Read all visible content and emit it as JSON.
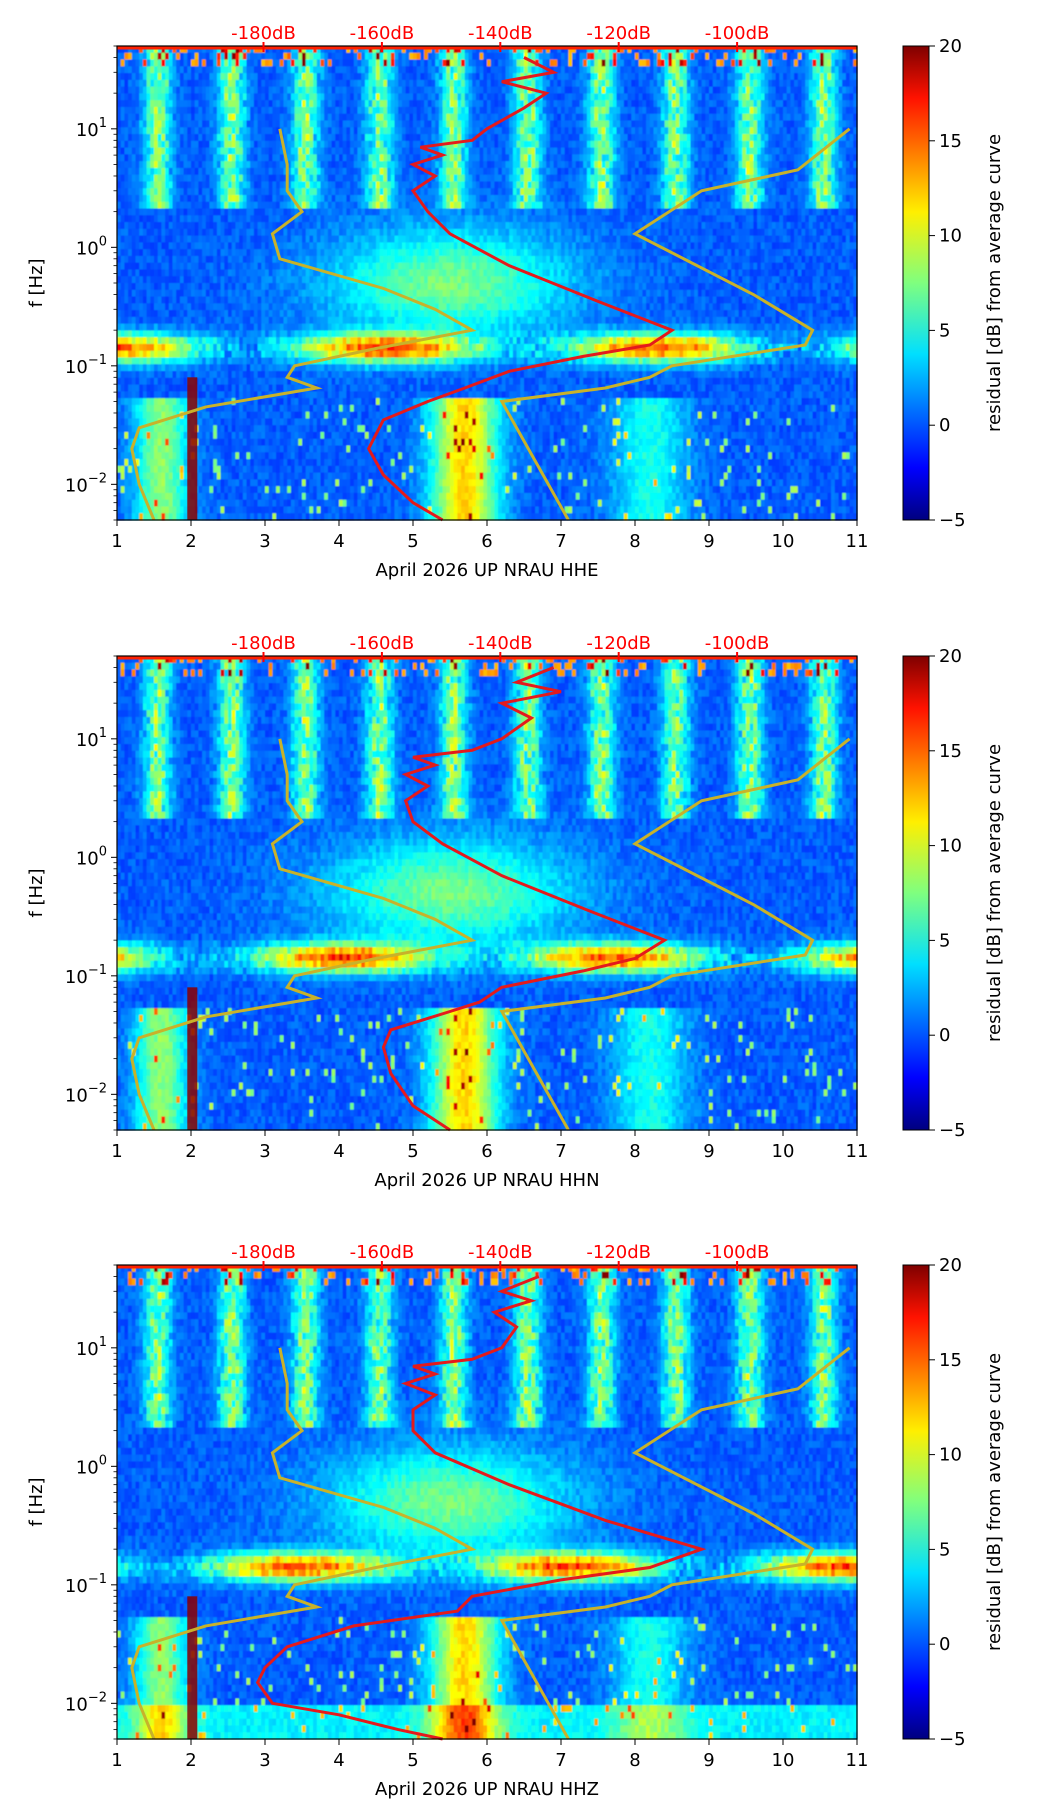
{
  "colorbar": {
    "label": "residual [dB] from average curve",
    "min": -5,
    "max": 20,
    "ticks": [
      "20",
      "15",
      "10",
      "5",
      "0",
      "−5"
    ],
    "tick_values": [
      20,
      15,
      10,
      5,
      0,
      -5
    ]
  },
  "colors": {
    "db_label": "#ff0000",
    "average_curve": "#e41a1c",
    "noise_model": "#c8b22a"
  },
  "chart_data": [
    {
      "type": "heatmap",
      "xlabel": "April 2026 UP NRAU  HHE",
      "ylabel": "f [Hz]",
      "xlim": [
        1,
        11
      ],
      "ylim_hz": [
        0.005,
        50
      ],
      "y_scale": "log",
      "x_ticks": [
        "1",
        "2",
        "3",
        "4",
        "5",
        "6",
        "7",
        "8",
        "9",
        "10",
        "11"
      ],
      "y_ticks": [
        "10",
        "10",
        "10",
        "10"
      ],
      "y_tick_exponents": [
        "−2",
        "−1",
        "0",
        "1"
      ],
      "top_ticks": [
        "-180dB",
        "-160dB",
        "-140dB",
        "-120dB",
        "-100dB"
      ],
      "top_tick_db": [
        -180,
        -160,
        -140,
        -120,
        -100
      ],
      "average_curve": [
        [
          5.4,
          0.005
        ],
        [
          5.0,
          0.007
        ],
        [
          4.6,
          0.012
        ],
        [
          4.4,
          0.02
        ],
        [
          4.6,
          0.035
        ],
        [
          5.2,
          0.05
        ],
        [
          5.7,
          0.065
        ],
        [
          6.3,
          0.09
        ],
        [
          7.3,
          0.12
        ],
        [
          8.2,
          0.15
        ],
        [
          8.5,
          0.2
        ],
        [
          7.5,
          0.35
        ],
        [
          6.3,
          0.7
        ],
        [
          5.5,
          1.3
        ],
        [
          5.2,
          2
        ],
        [
          5.0,
          3
        ],
        [
          5.3,
          4
        ],
        [
          5.0,
          5
        ],
        [
          5.4,
          6
        ],
        [
          5.1,
          7
        ],
        [
          5.8,
          8
        ],
        [
          6.0,
          10
        ],
        [
          6.5,
          15
        ],
        [
          6.8,
          20
        ],
        [
          6.2,
          25
        ],
        [
          6.9,
          30
        ],
        [
          6.5,
          40
        ]
      ]
    },
    {
      "type": "heatmap",
      "xlabel": "April 2026 UP NRAU  HHN",
      "ylabel": "f [Hz]",
      "xlim": [
        1,
        11
      ],
      "ylim_hz": [
        0.005,
        50
      ],
      "y_scale": "log",
      "x_ticks": [
        "1",
        "2",
        "3",
        "4",
        "5",
        "6",
        "7",
        "8",
        "9",
        "10",
        "11"
      ],
      "y_ticks": [
        "10",
        "10",
        "10",
        "10"
      ],
      "y_tick_exponents": [
        "−2",
        "−1",
        "0",
        "1"
      ],
      "top_ticks": [
        "-180dB",
        "-160dB",
        "-140dB",
        "-120dB",
        "-100dB"
      ],
      "top_tick_db": [
        -180,
        -160,
        -140,
        -120,
        -100
      ],
      "average_curve": [
        [
          5.5,
          0.005
        ],
        [
          5.0,
          0.008
        ],
        [
          4.7,
          0.015
        ],
        [
          4.6,
          0.025
        ],
        [
          4.7,
          0.035
        ],
        [
          5.5,
          0.05
        ],
        [
          5.9,
          0.06
        ],
        [
          6.2,
          0.08
        ],
        [
          7.3,
          0.11
        ],
        [
          8.0,
          0.14
        ],
        [
          8.4,
          0.2
        ],
        [
          7.4,
          0.35
        ],
        [
          6.2,
          0.7
        ],
        [
          5.4,
          1.3
        ],
        [
          5.0,
          2
        ],
        [
          4.9,
          3
        ],
        [
          5.2,
          4
        ],
        [
          4.9,
          5
        ],
        [
          5.3,
          6
        ],
        [
          5.0,
          7
        ],
        [
          5.8,
          8
        ],
        [
          6.2,
          10
        ],
        [
          6.6,
          15
        ],
        [
          6.2,
          20
        ],
        [
          7.0,
          25
        ],
        [
          6.4,
          30
        ],
        [
          6.9,
          40
        ]
      ]
    },
    {
      "type": "heatmap",
      "xlabel": "April 2026 UP NRAU  HHZ",
      "ylabel": "f [Hz]",
      "xlim": [
        1,
        11
      ],
      "ylim_hz": [
        0.005,
        50
      ],
      "y_scale": "log",
      "x_ticks": [
        "1",
        "2",
        "3",
        "4",
        "5",
        "6",
        "7",
        "8",
        "9",
        "10",
        "11"
      ],
      "y_ticks": [
        "10",
        "10",
        "10",
        "10"
      ],
      "y_tick_exponents": [
        "−2",
        "−1",
        "0",
        "1"
      ],
      "top_ticks": [
        "-180dB",
        "-160dB",
        "-140dB",
        "-120dB",
        "-100dB"
      ],
      "top_tick_db": [
        -180,
        -160,
        -140,
        -120,
        -100
      ],
      "average_curve": [
        [
          5.4,
          0.005
        ],
        [
          4.8,
          0.006
        ],
        [
          4.0,
          0.008
        ],
        [
          3.1,
          0.01
        ],
        [
          2.9,
          0.015
        ],
        [
          3.0,
          0.02
        ],
        [
          3.3,
          0.03
        ],
        [
          4.2,
          0.045
        ],
        [
          5.6,
          0.06
        ],
        [
          5.8,
          0.08
        ],
        [
          7.0,
          0.11
        ],
        [
          8.2,
          0.14
        ],
        [
          8.9,
          0.2
        ],
        [
          7.6,
          0.35
        ],
        [
          6.3,
          0.7
        ],
        [
          5.3,
          1.3
        ],
        [
          5.0,
          2
        ],
        [
          5.0,
          3
        ],
        [
          5.3,
          4
        ],
        [
          4.9,
          5
        ],
        [
          5.3,
          6
        ],
        [
          5.0,
          7
        ],
        [
          5.8,
          8
        ],
        [
          6.2,
          10
        ],
        [
          6.4,
          15
        ],
        [
          6.1,
          20
        ],
        [
          6.6,
          25
        ],
        [
          6.2,
          30
        ],
        [
          6.7,
          40
        ]
      ]
    }
  ],
  "noise_model_left": [
    [
      1.5,
      0.005
    ],
    [
      1.3,
      0.01
    ],
    [
      1.2,
      0.02
    ],
    [
      1.3,
      0.03
    ],
    [
      2.2,
      0.045
    ],
    [
      3.7,
      0.065
    ],
    [
      3.3,
      0.08
    ],
    [
      3.4,
      0.1
    ],
    [
      4.5,
      0.14
    ],
    [
      5.8,
      0.2
    ],
    [
      5.3,
      0.3
    ],
    [
      4.6,
      0.45
    ],
    [
      3.2,
      0.8
    ],
    [
      3.1,
      1.3
    ],
    [
      3.5,
      2
    ],
    [
      3.3,
      3
    ],
    [
      3.3,
      5
    ],
    [
      3.2,
      10
    ]
  ],
  "noise_model_right": [
    [
      7.1,
      0.005
    ],
    [
      6.2,
      0.05
    ],
    [
      7.6,
      0.065
    ],
    [
      8.2,
      0.08
    ],
    [
      8.5,
      0.1
    ],
    [
      10.3,
      0.15
    ],
    [
      10.4,
      0.2
    ],
    [
      9.6,
      0.4
    ],
    [
      8.0,
      1.3
    ],
    [
      8.9,
      3
    ],
    [
      10.2,
      4.5
    ],
    [
      10.9,
      10
    ]
  ]
}
